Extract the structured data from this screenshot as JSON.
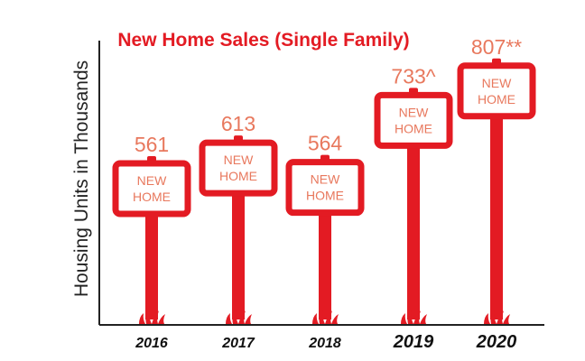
{
  "chart_data": {
    "type": "bar",
    "title": "New Home Sales (Single Family)",
    "ylabel": "Housing Units in Thousands",
    "xlabel": "",
    "categories": [
      "2016",
      "2017",
      "2018",
      "2019",
      "2020"
    ],
    "values": [
      561,
      613,
      564,
      733,
      807
    ],
    "value_labels": [
      "561",
      "613",
      "564",
      "733^",
      "807**"
    ],
    "sign_text_line1": "NEW",
    "sign_text_line2": "HOME",
    "ylim": [
      0,
      850
    ],
    "grid": false,
    "legend": "none",
    "colors": {
      "accent": "#e31b23",
      "value_label": "#e8785d",
      "sign_text": "#e8785d",
      "axis": "#222222",
      "year": "#111111"
    },
    "icon_names": [
      "for-sale-sign-icon",
      "grass-tuft-icon"
    ]
  }
}
